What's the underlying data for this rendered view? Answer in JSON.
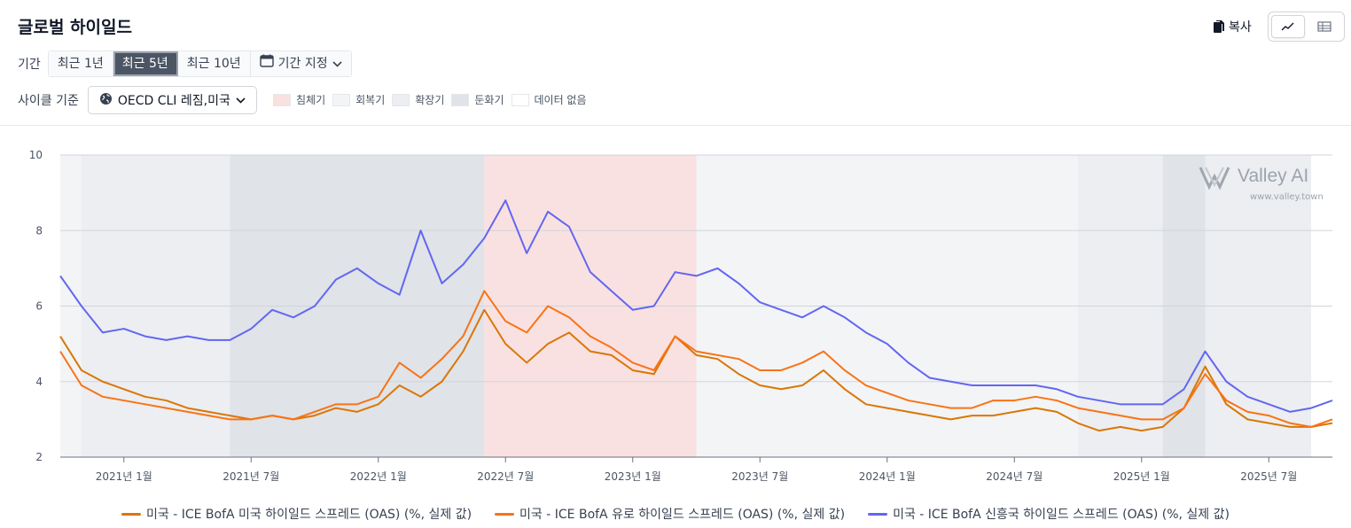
{
  "title": "글로벌 하이일드",
  "toolbar": {
    "copy_label": "복사",
    "view_chart_icon": "line-chart-icon",
    "view_table_icon": "table-icon"
  },
  "period": {
    "label": "기간",
    "options": [
      "최근 1년",
      "최근 5년",
      "최근 10년"
    ],
    "selected": "최근 5년",
    "custom_label": "기간 지정"
  },
  "cycle": {
    "label": "사이클 기준",
    "selected": "OECD CLI 레짐,미국",
    "phases": [
      {
        "name": "침체기",
        "color": "#f9e1e1"
      },
      {
        "name": "회복기",
        "color": "#f3f4f6"
      },
      {
        "name": "확장기",
        "color": "#eceef1"
      },
      {
        "name": "둔화기",
        "color": "#e0e3e8"
      },
      {
        "name": "데이터 없음",
        "color": "#ffffff"
      }
    ]
  },
  "watermark": {
    "name": "Valley AI",
    "url": "www.valley.town"
  },
  "chart_data": {
    "type": "line",
    "x_ticks": [
      "2021년 1월",
      "2021년 7월",
      "2022년 1월",
      "2022년 7월",
      "2023년 1월",
      "2023년 7월",
      "2024년 1월",
      "2024년 7월",
      "2025년 1월",
      "2025년 7월"
    ],
    "x_range": [
      "2020-10",
      "2025-10"
    ],
    "ylim": [
      2,
      10
    ],
    "y_ticks": [
      2,
      4,
      6,
      8,
      10
    ],
    "grid": true,
    "legend_position": "bottom",
    "regimes": [
      {
        "start": "2020-10",
        "end": "2020-11",
        "phase": "회복기"
      },
      {
        "start": "2020-11",
        "end": "2021-06",
        "phase": "확장기"
      },
      {
        "start": "2021-06",
        "end": "2022-06",
        "phase": "둔화기"
      },
      {
        "start": "2022-06",
        "end": "2023-04",
        "phase": "침체기"
      },
      {
        "start": "2023-04",
        "end": "2024-10",
        "phase": "회복기"
      },
      {
        "start": "2024-10",
        "end": "2025-02",
        "phase": "확장기"
      },
      {
        "start": "2025-02",
        "end": "2025-04",
        "phase": "둔화기"
      },
      {
        "start": "2025-04",
        "end": "2025-09",
        "phase": "확장기"
      },
      {
        "start": "2025-09",
        "end": "2025-10",
        "phase": "데이터 없음"
      }
    ],
    "series": [
      {
        "name": "미국 - ICE BofA 미국 하이일드 스프레드 (OAS) (%, 실제 값)",
        "color": "#d97706",
        "points": [
          [
            "2020-10",
            5.2
          ],
          [
            "2020-11",
            4.3
          ],
          [
            "2020-12",
            4.0
          ],
          [
            "2021-01",
            3.8
          ],
          [
            "2021-02",
            3.6
          ],
          [
            "2021-03",
            3.5
          ],
          [
            "2021-04",
            3.3
          ],
          [
            "2021-05",
            3.2
          ],
          [
            "2021-06",
            3.1
          ],
          [
            "2021-07",
            3.0
          ],
          [
            "2021-08",
            3.1
          ],
          [
            "2021-09",
            3.0
          ],
          [
            "2021-10",
            3.1
          ],
          [
            "2021-11",
            3.3
          ],
          [
            "2021-12",
            3.2
          ],
          [
            "2022-01",
            3.4
          ],
          [
            "2022-02",
            3.9
          ],
          [
            "2022-03",
            3.6
          ],
          [
            "2022-04",
            4.0
          ],
          [
            "2022-05",
            4.8
          ],
          [
            "2022-06",
            5.9
          ],
          [
            "2022-07",
            5.0
          ],
          [
            "2022-08",
            4.5
          ],
          [
            "2022-09",
            5.0
          ],
          [
            "2022-10",
            5.3
          ],
          [
            "2022-11",
            4.8
          ],
          [
            "2022-12",
            4.7
          ],
          [
            "2023-01",
            4.3
          ],
          [
            "2023-02",
            4.2
          ],
          [
            "2023-03",
            5.2
          ],
          [
            "2023-04",
            4.7
          ],
          [
            "2023-05",
            4.6
          ],
          [
            "2023-06",
            4.2
          ],
          [
            "2023-07",
            3.9
          ],
          [
            "2023-08",
            3.8
          ],
          [
            "2023-09",
            3.9
          ],
          [
            "2023-10",
            4.3
          ],
          [
            "2023-11",
            3.8
          ],
          [
            "2023-12",
            3.4
          ],
          [
            "2024-01",
            3.3
          ],
          [
            "2024-02",
            3.2
          ],
          [
            "2024-03",
            3.1
          ],
          [
            "2024-04",
            3.0
          ],
          [
            "2024-05",
            3.1
          ],
          [
            "2024-06",
            3.1
          ],
          [
            "2024-07",
            3.2
          ],
          [
            "2024-08",
            3.3
          ],
          [
            "2024-09",
            3.2
          ],
          [
            "2024-10",
            2.9
          ],
          [
            "2024-11",
            2.7
          ],
          [
            "2024-12",
            2.8
          ],
          [
            "2025-01",
            2.7
          ],
          [
            "2025-02",
            2.8
          ],
          [
            "2025-03",
            3.3
          ],
          [
            "2025-04",
            4.4
          ],
          [
            "2025-05",
            3.4
          ],
          [
            "2025-06",
            3.0
          ],
          [
            "2025-07",
            2.9
          ],
          [
            "2025-08",
            2.8
          ],
          [
            "2025-09",
            2.8
          ],
          [
            "2025-10",
            2.9
          ]
        ]
      },
      {
        "name": "미국 - ICE BofA 유로 하이일드 스프레드 (OAS) (%, 실제 값)",
        "color": "#f97316",
        "points": [
          [
            "2020-10",
            4.8
          ],
          [
            "2020-11",
            3.9
          ],
          [
            "2020-12",
            3.6
          ],
          [
            "2021-01",
            3.5
          ],
          [
            "2021-02",
            3.4
          ],
          [
            "2021-03",
            3.3
          ],
          [
            "2021-04",
            3.2
          ],
          [
            "2021-05",
            3.1
          ],
          [
            "2021-06",
            3.0
          ],
          [
            "2021-07",
            3.0
          ],
          [
            "2021-08",
            3.1
          ],
          [
            "2021-09",
            3.0
          ],
          [
            "2021-10",
            3.2
          ],
          [
            "2021-11",
            3.4
          ],
          [
            "2021-12",
            3.4
          ],
          [
            "2022-01",
            3.6
          ],
          [
            "2022-02",
            4.5
          ],
          [
            "2022-03",
            4.1
          ],
          [
            "2022-04",
            4.6
          ],
          [
            "2022-05",
            5.2
          ],
          [
            "2022-06",
            6.4
          ],
          [
            "2022-07",
            5.6
          ],
          [
            "2022-08",
            5.3
          ],
          [
            "2022-09",
            6.0
          ],
          [
            "2022-10",
            5.7
          ],
          [
            "2022-11",
            5.2
          ],
          [
            "2022-12",
            4.9
          ],
          [
            "2023-01",
            4.5
          ],
          [
            "2023-02",
            4.3
          ],
          [
            "2023-03",
            5.2
          ],
          [
            "2023-04",
            4.8
          ],
          [
            "2023-05",
            4.7
          ],
          [
            "2023-06",
            4.6
          ],
          [
            "2023-07",
            4.3
          ],
          [
            "2023-08",
            4.3
          ],
          [
            "2023-09",
            4.5
          ],
          [
            "2023-10",
            4.8
          ],
          [
            "2023-11",
            4.3
          ],
          [
            "2023-12",
            3.9
          ],
          [
            "2024-01",
            3.7
          ],
          [
            "2024-02",
            3.5
          ],
          [
            "2024-03",
            3.4
          ],
          [
            "2024-04",
            3.3
          ],
          [
            "2024-05",
            3.3
          ],
          [
            "2024-06",
            3.5
          ],
          [
            "2024-07",
            3.5
          ],
          [
            "2024-08",
            3.6
          ],
          [
            "2024-09",
            3.5
          ],
          [
            "2024-10",
            3.3
          ],
          [
            "2024-11",
            3.2
          ],
          [
            "2024-12",
            3.1
          ],
          [
            "2025-01",
            3.0
          ],
          [
            "2025-02",
            3.0
          ],
          [
            "2025-03",
            3.3
          ],
          [
            "2025-04",
            4.2
          ],
          [
            "2025-05",
            3.5
          ],
          [
            "2025-06",
            3.2
          ],
          [
            "2025-07",
            3.1
          ],
          [
            "2025-08",
            2.9
          ],
          [
            "2025-09",
            2.8
          ],
          [
            "2025-10",
            3.0
          ]
        ]
      },
      {
        "name": "미국 - ICE BofA 신흥국 하이일드 스프레드 (OAS) (%, 실제 값)",
        "color": "#6366f1",
        "points": [
          [
            "2020-10",
            6.8
          ],
          [
            "2020-11",
            6.0
          ],
          [
            "2020-12",
            5.3
          ],
          [
            "2021-01",
            5.4
          ],
          [
            "2021-02",
            5.2
          ],
          [
            "2021-03",
            5.1
          ],
          [
            "2021-04",
            5.2
          ],
          [
            "2021-05",
            5.1
          ],
          [
            "2021-06",
            5.1
          ],
          [
            "2021-07",
            5.4
          ],
          [
            "2021-08",
            5.9
          ],
          [
            "2021-09",
            5.7
          ],
          [
            "2021-10",
            6.0
          ],
          [
            "2021-11",
            6.7
          ],
          [
            "2021-12",
            7.0
          ],
          [
            "2022-01",
            6.6
          ],
          [
            "2022-02",
            6.3
          ],
          [
            "2022-03",
            8.0
          ],
          [
            "2022-04",
            6.6
          ],
          [
            "2022-05",
            7.1
          ],
          [
            "2022-06",
            7.8
          ],
          [
            "2022-07",
            8.8
          ],
          [
            "2022-08",
            7.4
          ],
          [
            "2022-09",
            8.5
          ],
          [
            "2022-10",
            8.1
          ],
          [
            "2022-11",
            6.9
          ],
          [
            "2022-12",
            6.4
          ],
          [
            "2023-01",
            5.9
          ],
          [
            "2023-02",
            6.0
          ],
          [
            "2023-03",
            6.9
          ],
          [
            "2023-04",
            6.8
          ],
          [
            "2023-05",
            7.0
          ],
          [
            "2023-06",
            6.6
          ],
          [
            "2023-07",
            6.1
          ],
          [
            "2023-08",
            5.9
          ],
          [
            "2023-09",
            5.7
          ],
          [
            "2023-10",
            6.0
          ],
          [
            "2023-11",
            5.7
          ],
          [
            "2023-12",
            5.3
          ],
          [
            "2024-01",
            5.0
          ],
          [
            "2024-02",
            4.5
          ],
          [
            "2024-03",
            4.1
          ],
          [
            "2024-04",
            4.0
          ],
          [
            "2024-05",
            3.9
          ],
          [
            "2024-06",
            3.9
          ],
          [
            "2024-07",
            3.9
          ],
          [
            "2024-08",
            3.9
          ],
          [
            "2024-09",
            3.8
          ],
          [
            "2024-10",
            3.6
          ],
          [
            "2024-11",
            3.5
          ],
          [
            "2024-12",
            3.4
          ],
          [
            "2025-01",
            3.4
          ],
          [
            "2025-02",
            3.4
          ],
          [
            "2025-03",
            3.8
          ],
          [
            "2025-04",
            4.8
          ],
          [
            "2025-05",
            4.0
          ],
          [
            "2025-06",
            3.6
          ],
          [
            "2025-07",
            3.4
          ],
          [
            "2025-08",
            3.2
          ],
          [
            "2025-09",
            3.3
          ],
          [
            "2025-10",
            3.5
          ]
        ]
      }
    ]
  }
}
